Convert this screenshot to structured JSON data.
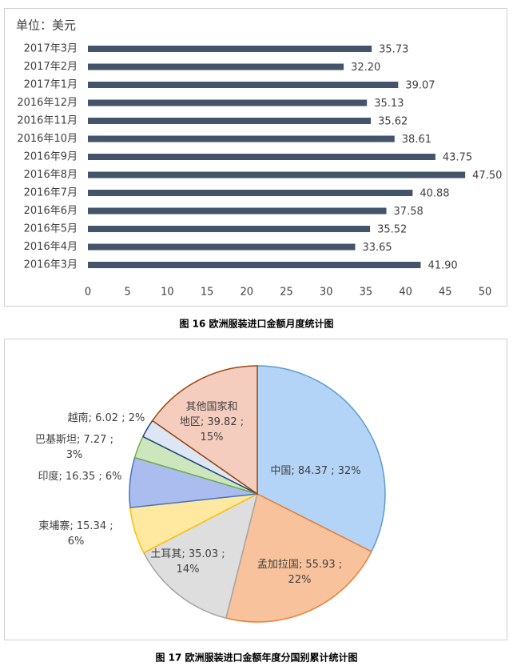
{
  "chart_data": [
    {
      "type": "bar",
      "orientation": "horizontal",
      "subtitle": "单位：美元",
      "caption": "图 16 欧洲服装进口金额月度统计图",
      "categories": [
        "2017年3月",
        "2017年2月",
        "2017年1月",
        "2016年12月",
        "2016年11月",
        "2016年10月",
        "2016年9月",
        "2016年8月",
        "2016年7月",
        "2016年6月",
        "2016年5月",
        "2016年4月",
        "2016年3月"
      ],
      "values": [
        35.73,
        32.2,
        39.07,
        35.13,
        35.62,
        38.61,
        43.75,
        47.5,
        40.88,
        37.58,
        35.52,
        33.65,
        41.9
      ],
      "value_labels": [
        "35.73",
        "32.20",
        "39.07",
        "35.13",
        "35.62",
        "38.61",
        "43.75",
        "47.50",
        "40.88",
        "37.58",
        "35.52",
        "33.65",
        "41.90"
      ],
      "color": "#44546a",
      "xlim": [
        0,
        50
      ],
      "xticks": [
        0,
        5,
        10,
        15,
        20,
        25,
        30,
        35,
        40,
        45,
        50
      ]
    },
    {
      "type": "pie",
      "caption": "图 17 欧洲服装进口金额年度分国别累计统计图",
      "categories": [
        "中国",
        "孟加拉国",
        "土耳其",
        "柬埔寨",
        "印度",
        "巴基斯坦",
        "越南",
        "其他国家和地区"
      ],
      "values": [
        84.37,
        55.93,
        35.03,
        15.34,
        16.35,
        7.27,
        6.02,
        39.82
      ],
      "value_labels": [
        "中国; 84.37 ; 32%",
        "孟加拉国; 55.93 ;\n22%",
        "土耳其; 35.03 ;\n14%",
        "柬埔寨; 15.34 ;\n6%",
        "印度; 16.35 ; 6%",
        "巴基斯坦; 7.27 ;\n3%",
        "越南; 6.02 ; 2%",
        "其他国家和\n地区; 39.82 ;\n15%"
      ],
      "colors": [
        "#b4d4f7",
        "#f8c39c",
        "#dedede",
        "#ffe9a0",
        "#aabdee",
        "#cde6bd",
        "#dde6f4",
        "#f5cdbf"
      ],
      "edge_colors": [
        "#5b9bd5",
        "#ed7d31",
        "#a5a5a5",
        "#ffc000",
        "#4472c4",
        "#70ad47",
        "#264478",
        "#9e480e"
      ]
    }
  ]
}
